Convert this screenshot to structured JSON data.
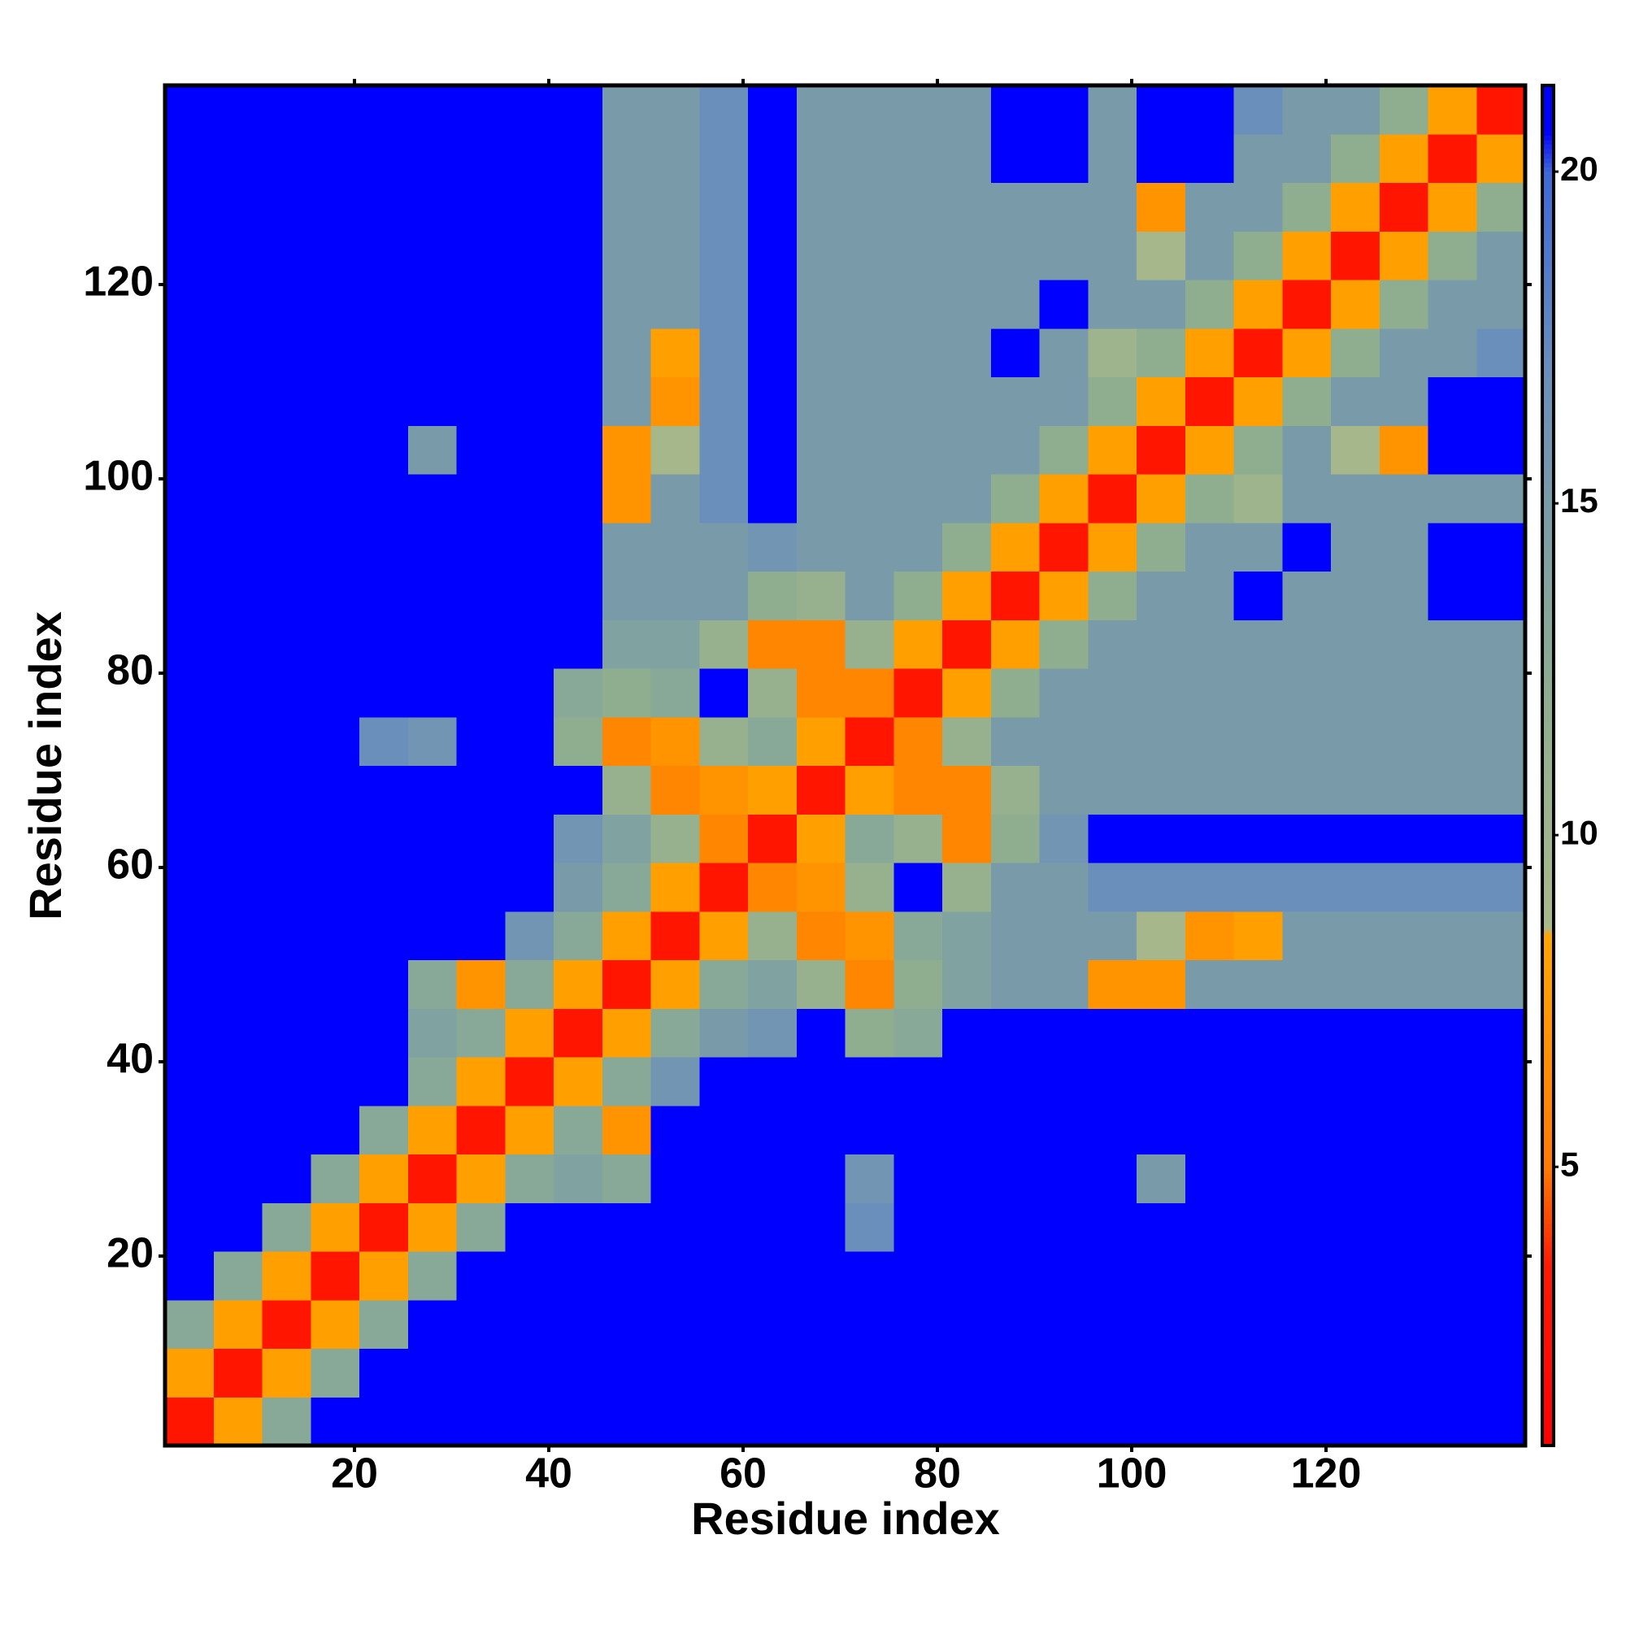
{
  "chart_data": {
    "type": "heatmap",
    "xlabel": "Residue index",
    "ylabel": "Residue index",
    "x_bins": [
      0.5,
      5.5,
      10.5,
      15.5,
      20.5,
      25.5,
      30.5,
      35.5,
      40.5,
      45.5,
      50.5,
      55.5,
      60.5,
      65.5,
      70.5,
      75.5,
      80.5,
      85.5,
      90.5,
      95.5,
      100.5,
      105.5,
      110.5,
      115.5,
      120.5,
      125.5,
      130.5,
      135.5,
      140.5
    ],
    "y_bins": [
      0.5,
      5.5,
      10.5,
      15.5,
      20.5,
      25.5,
      30.5,
      35.5,
      40.5,
      45.5,
      50.5,
      55.5,
      60.5,
      65.5,
      70.5,
      75.5,
      80.5,
      85.5,
      90.5,
      95.5,
      100.5,
      105.5,
      110.5,
      115.5,
      120.5,
      125.5,
      130.5,
      135.5,
      140.5
    ],
    "xlim": [
      0.5,
      140.5
    ],
    "ylim": [
      0.5,
      140.5
    ],
    "xticks": [
      20,
      40,
      60,
      80,
      100,
      120
    ],
    "yticks": [
      20,
      40,
      60,
      80,
      100,
      120
    ],
    "clim": [
      0.8,
      21.3
    ],
    "cticks": [
      5,
      10,
      15,
      20
    ],
    "colorscale": [
      [
        0.8,
        "#ff0000"
      ],
      [
        3.5,
        "#ff1a00"
      ],
      [
        5,
        "#ff7a00"
      ],
      [
        8.5,
        "#ffa500"
      ],
      [
        8.6,
        "#a9b98a"
      ],
      [
        12,
        "#8fae8f"
      ],
      [
        17,
        "#6a8fbb"
      ],
      [
        20,
        "#3d68d8"
      ],
      [
        20.6,
        "#0000ff"
      ],
      [
        21.3,
        "#0000ff"
      ]
    ],
    "values": [
      [
        3,
        8,
        13,
        21,
        21,
        21,
        21,
        21,
        21,
        21,
        21,
        21,
        21,
        21,
        21,
        21,
        21,
        21,
        21,
        21,
        21,
        21,
        21,
        21,
        21,
        21,
        21,
        21
      ],
      [
        8,
        3,
        8,
        13,
        21,
        21,
        21,
        21,
        21,
        21,
        21,
        21,
        21,
        21,
        21,
        21,
        21,
        21,
        21,
        21,
        21,
        21,
        21,
        21,
        21,
        21,
        21,
        21
      ],
      [
        13,
        8,
        3,
        8,
        13,
        21,
        21,
        21,
        21,
        21,
        21,
        21,
        21,
        21,
        21,
        21,
        21,
        21,
        21,
        21,
        21,
        21,
        21,
        21,
        21,
        21,
        21,
        21
      ],
      [
        21,
        13,
        8,
        3,
        8,
        13,
        21,
        21,
        21,
        21,
        21,
        21,
        21,
        21,
        21,
        21,
        21,
        21,
        21,
        21,
        21,
        21,
        21,
        21,
        21,
        21,
        21,
        21
      ],
      [
        21,
        21,
        13,
        8,
        3,
        8,
        13,
        21,
        21,
        21,
        21,
        21,
        21,
        21,
        17,
        21,
        21,
        21,
        21,
        21,
        21,
        21,
        21,
        21,
        21,
        21,
        21,
        21
      ],
      [
        21,
        21,
        21,
        13,
        8,
        3,
        8,
        13,
        14,
        13,
        21,
        21,
        21,
        21,
        16,
        21,
        21,
        21,
        21,
        21,
        15,
        21,
        21,
        21,
        21,
        21,
        21,
        21
      ],
      [
        21,
        21,
        21,
        21,
        13,
        8,
        3,
        8,
        13,
        7,
        21,
        21,
        21,
        21,
        21,
        21,
        21,
        21,
        21,
        21,
        21,
        21,
        21,
        21,
        21,
        21,
        21,
        21
      ],
      [
        21,
        21,
        21,
        21,
        21,
        13,
        8,
        3,
        8,
        13,
        16,
        21,
        21,
        21,
        21,
        21,
        21,
        21,
        21,
        21,
        21,
        21,
        21,
        21,
        21,
        21,
        21,
        21
      ],
      [
        21,
        21,
        21,
        21,
        21,
        14,
        13,
        8,
        3,
        8,
        13,
        15,
        16,
        21,
        12,
        13,
        21,
        21,
        21,
        21,
        21,
        21,
        21,
        21,
        21,
        21,
        21,
        21
      ],
      [
        21,
        21,
        21,
        21,
        21,
        13,
        7,
        13,
        8,
        3,
        8,
        13,
        14,
        11,
        6,
        12,
        14,
        15,
        15,
        7,
        7,
        15,
        15,
        15,
        15,
        15,
        15,
        15
      ],
      [
        21,
        21,
        21,
        21,
        21,
        21,
        21,
        16,
        13,
        8,
        3,
        8,
        11,
        6,
        7,
        13,
        14,
        15,
        15,
        15,
        9,
        7,
        8,
        15,
        15,
        15,
        15,
        15
      ],
      [
        21,
        21,
        21,
        21,
        21,
        21,
        21,
        21,
        15,
        13,
        8,
        3,
        6,
        7,
        11,
        21,
        11,
        15,
        15,
        17,
        17,
        17,
        17,
        17,
        17,
        17,
        17,
        17
      ],
      [
        21,
        21,
        21,
        21,
        21,
        21,
        21,
        21,
        16,
        14,
        11,
        6,
        3,
        8,
        13,
        11,
        6,
        12,
        16,
        21,
        21,
        21,
        21,
        21,
        21,
        21,
        21,
        21
      ],
      [
        21,
        21,
        21,
        21,
        21,
        21,
        21,
        21,
        21,
        11,
        6,
        7,
        8,
        3,
        8,
        6,
        6,
        11,
        15,
        15,
        15,
        15,
        15,
        15,
        15,
        15,
        15,
        15
      ],
      [
        21,
        21,
        21,
        21,
        17,
        16,
        21,
        21,
        12,
        6,
        7,
        11,
        13,
        8,
        3,
        6,
        11,
        15,
        15,
        15,
        15,
        15,
        15,
        15,
        15,
        15,
        15,
        15
      ],
      [
        21,
        21,
        21,
        21,
        21,
        21,
        21,
        21,
        13,
        12,
        13,
        21,
        11,
        6,
        6,
        3,
        8,
        12,
        15,
        15,
        15,
        15,
        15,
        15,
        15,
        15,
        15,
        15
      ],
      [
        21,
        21,
        21,
        21,
        21,
        21,
        21,
        21,
        21,
        14,
        14,
        11,
        6,
        6,
        11,
        8,
        3,
        8,
        12,
        15,
        15,
        15,
        15,
        15,
        15,
        15,
        15,
        15
      ],
      [
        21,
        21,
        21,
        21,
        21,
        21,
        21,
        21,
        21,
        15,
        15,
        15,
        12,
        11,
        15,
        12,
        8,
        3,
        8,
        12,
        15,
        15,
        21,
        15,
        15,
        15,
        21,
        21
      ],
      [
        21,
        21,
        21,
        21,
        21,
        21,
        21,
        21,
        21,
        15,
        15,
        15,
        16,
        15,
        15,
        15,
        12,
        8,
        3,
        8,
        12,
        15,
        15,
        21,
        15,
        15,
        21,
        21
      ],
      [
        21,
        21,
        21,
        21,
        21,
        21,
        21,
        21,
        21,
        7,
        15,
        17,
        21,
        15,
        15,
        15,
        15,
        12,
        8,
        3,
        8,
        12,
        10,
        15,
        15,
        15,
        15,
        15
      ],
      [
        21,
        21,
        21,
        21,
        21,
        15,
        21,
        21,
        21,
        7,
        9,
        17,
        21,
        15,
        15,
        15,
        15,
        15,
        12,
        8,
        3,
        8,
        12,
        15,
        9,
        7,
        21,
        21
      ],
      [
        21,
        21,
        21,
        21,
        21,
        21,
        21,
        21,
        21,
        15,
        7,
        17,
        21,
        15,
        15,
        15,
        15,
        15,
        15,
        12,
        8,
        3,
        8,
        12,
        15,
        15,
        21,
        21
      ],
      [
        21,
        21,
        21,
        21,
        21,
        21,
        21,
        21,
        21,
        15,
        8,
        17,
        21,
        15,
        15,
        15,
        15,
        21,
        15,
        10,
        12,
        8,
        3,
        8,
        12,
        15,
        15,
        17
      ],
      [
        21,
        21,
        21,
        21,
        21,
        21,
        21,
        21,
        21,
        15,
        15,
        17,
        21,
        15,
        15,
        15,
        15,
        15,
        21,
        15,
        15,
        12,
        8,
        3,
        8,
        12,
        15,
        15
      ],
      [
        21,
        21,
        21,
        21,
        21,
        21,
        21,
        21,
        21,
        15,
        15,
        17,
        21,
        15,
        15,
        15,
        15,
        15,
        15,
        15,
        9,
        15,
        12,
        8,
        3,
        8,
        12,
        15
      ],
      [
        21,
        21,
        21,
        21,
        21,
        21,
        21,
        21,
        21,
        15,
        15,
        17,
        21,
        15,
        15,
        15,
        15,
        15,
        15,
        15,
        7,
        15,
        15,
        12,
        8,
        3,
        8,
        12
      ],
      [
        21,
        21,
        21,
        21,
        21,
        21,
        21,
        21,
        21,
        15,
        15,
        17,
        21,
        15,
        15,
        15,
        15,
        21,
        21,
        15,
        21,
        21,
        15,
        15,
        12,
        8,
        3,
        8
      ],
      [
        21,
        21,
        21,
        21,
        21,
        21,
        21,
        21,
        21,
        15,
        15,
        17,
        21,
        15,
        15,
        15,
        15,
        21,
        21,
        15,
        21,
        21,
        17,
        15,
        15,
        12,
        8,
        3
      ]
    ]
  }
}
